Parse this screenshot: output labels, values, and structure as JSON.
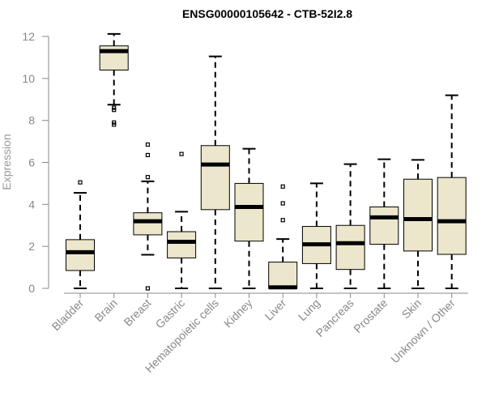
{
  "chart_data": {
    "type": "box",
    "title": "ENSG00000105642 - CTB-52I2.8",
    "ylabel": "Expression",
    "xlabel": "",
    "ylim": [
      0,
      12
    ],
    "yticks": [
      "0",
      "2",
      "4",
      "6",
      "8",
      "10",
      "12"
    ],
    "grid": false,
    "colors": {
      "box_fill": "#ECE6CC",
      "stroke": "#000000",
      "axis": "#888888"
    },
    "categories": [
      "Bladder",
      "Brain",
      "Breast",
      "Gastric",
      "Hematopoietic cells",
      "Kidney",
      "Liver",
      "Lung",
      "Pancreas",
      "Prostate",
      "Skin",
      "Unknown / Other"
    ],
    "boxes": [
      {
        "category": "Bladder",
        "whisker_low": 0.0,
        "q1": 0.85,
        "median": 1.72,
        "q3": 2.32,
        "whisker_high": 4.55,
        "outliers": [
          5.05
        ]
      },
      {
        "category": "Brain",
        "whisker_low": 8.75,
        "q1": 10.4,
        "median": 11.3,
        "q3": 11.55,
        "whisker_high": 12.12,
        "outliers": [
          8.6,
          8.5,
          7.9,
          7.8
        ]
      },
      {
        "category": "Breast",
        "whisker_low": 1.6,
        "q1": 2.55,
        "median": 3.2,
        "q3": 3.6,
        "whisker_high": 5.1,
        "outliers": [
          6.85,
          6.35,
          5.3,
          0.0
        ]
      },
      {
        "category": "Gastric",
        "whisker_low": 0.0,
        "q1": 1.45,
        "median": 2.22,
        "q3": 2.7,
        "whisker_high": 3.65,
        "outliers": [
          6.4
        ]
      },
      {
        "category": "Hematopoietic cells",
        "whisker_low": 0.0,
        "q1": 3.75,
        "median": 5.9,
        "q3": 6.8,
        "whisker_high": 11.05,
        "outliers": []
      },
      {
        "category": "Kidney",
        "whisker_low": 0.0,
        "q1": 2.25,
        "median": 3.88,
        "q3": 5.0,
        "whisker_high": 6.65,
        "outliers": []
      },
      {
        "category": "Liver",
        "whisker_low": 0.0,
        "q1": 0.0,
        "median": 0.05,
        "q3": 1.25,
        "whisker_high": 2.35,
        "outliers": [
          4.85,
          4.05,
          3.25
        ]
      },
      {
        "category": "Lung",
        "whisker_low": 0.0,
        "q1": 1.18,
        "median": 2.1,
        "q3": 2.95,
        "whisker_high": 5.0,
        "outliers": []
      },
      {
        "category": "Pancreas",
        "whisker_low": 0.0,
        "q1": 0.9,
        "median": 2.15,
        "q3": 3.0,
        "whisker_high": 5.92,
        "outliers": []
      },
      {
        "category": "Prostate",
        "whisker_low": 0.0,
        "q1": 2.1,
        "median": 3.38,
        "q3": 3.88,
        "whisker_high": 6.15,
        "outliers": []
      },
      {
        "category": "Skin",
        "whisker_low": 0.0,
        "q1": 1.78,
        "median": 3.3,
        "q3": 5.2,
        "whisker_high": 6.12,
        "outliers": []
      },
      {
        "category": "Unknown / Other",
        "whisker_low": 0.0,
        "q1": 1.62,
        "median": 3.2,
        "q3": 5.28,
        "whisker_high": 9.2,
        "outliers": []
      }
    ]
  }
}
